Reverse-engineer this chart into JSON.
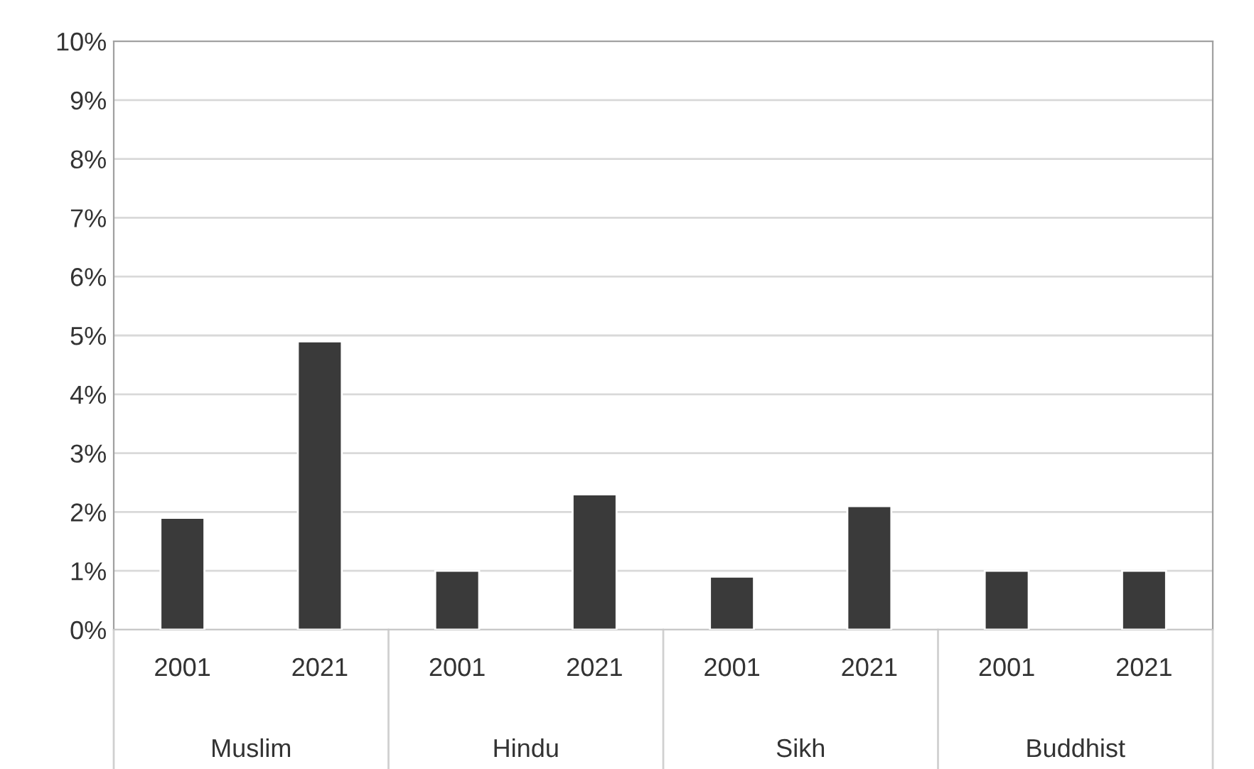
{
  "chart_data": {
    "type": "bar",
    "categories": [
      "2001",
      "2021",
      "2001",
      "2021",
      "2001",
      "2021",
      "2001",
      "2021"
    ],
    "values": [
      1.9,
      4.9,
      1.0,
      2.3,
      0.9,
      2.1,
      1.0,
      1.0
    ],
    "color": "#3a3a3a",
    "ylim": [
      0,
      10
    ],
    "yticks": [
      {
        "value": 0,
        "label": "0%"
      },
      {
        "value": 1,
        "label": "1%"
      },
      {
        "value": 2,
        "label": "2%"
      },
      {
        "value": 3,
        "label": "3%"
      },
      {
        "value": 4,
        "label": "4%"
      },
      {
        "value": 5,
        "label": "5%"
      },
      {
        "value": 6,
        "label": "6%"
      },
      {
        "value": 7,
        "label": "7%"
      },
      {
        "value": 8,
        "label": "8%"
      },
      {
        "value": 9,
        "label": "9%"
      },
      {
        "value": 10,
        "label": "10%"
      }
    ],
    "grid": "y",
    "annotations": [
      "Muslim",
      "Hindu",
      "Sikh",
      "Buddhist"
    ]
  }
}
